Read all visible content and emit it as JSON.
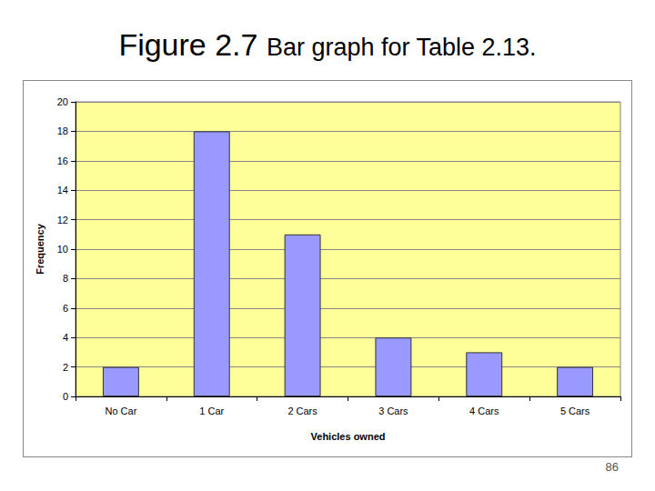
{
  "chart_data": {
    "type": "bar",
    "title": "Figure 2.7 Bar graph for Table 2.13.",
    "x_label": "Vehicles owned",
    "y_label": "Frequency",
    "categories": [
      "No Car",
      "1 Car",
      "2 Cars",
      "3 Cars",
      "4 Cars",
      "5 Cars"
    ],
    "values": [
      2,
      18,
      11,
      4,
      3,
      2
    ],
    "color": "#9999ff",
    "ylim": [
      0,
      20
    ],
    "yticks": [
      0,
      2,
      4,
      6,
      8,
      10,
      12,
      14,
      16,
      18,
      20
    ],
    "grid": true,
    "annotations": [
      "86"
    ]
  }
}
